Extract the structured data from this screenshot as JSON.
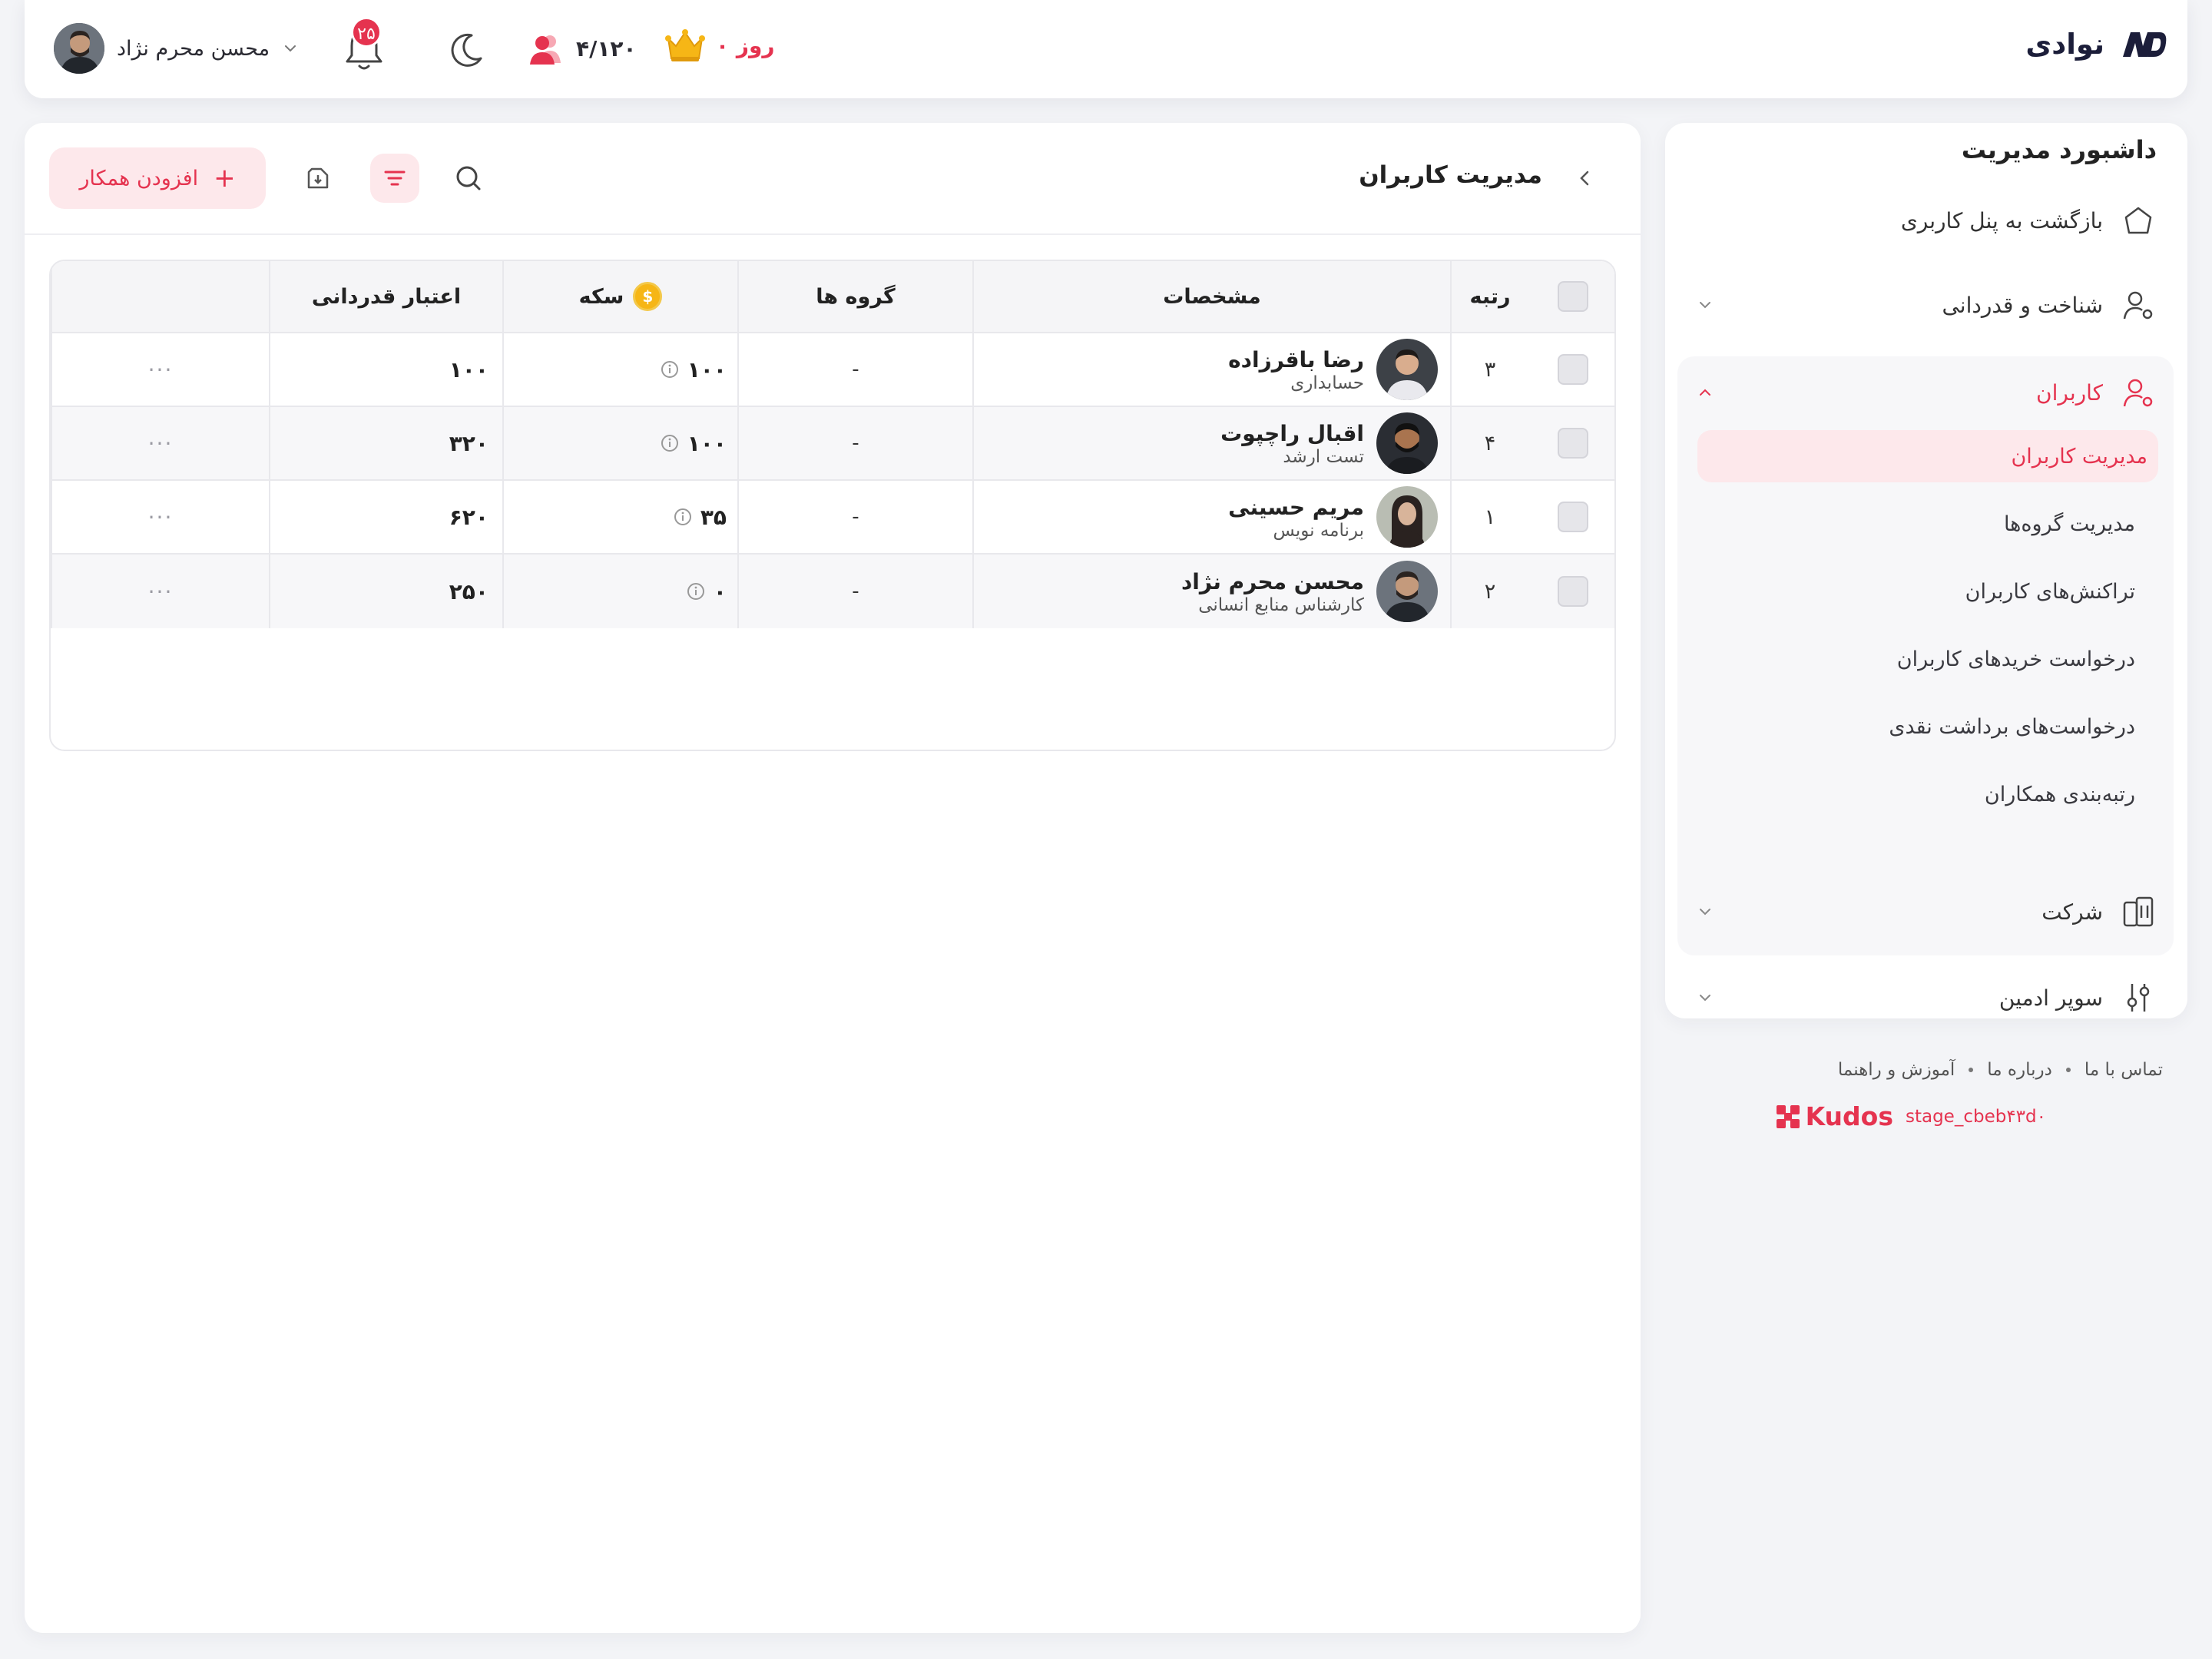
{
  "header": {
    "brand_name": "نوادی",
    "user_name": "محسن محرم نژاد",
    "notification_count": "۲۵",
    "users_count": "۴/۱۲۰",
    "days_left": "۰ روز"
  },
  "sidebar": {
    "title": "داشبورد مدیریت",
    "back_label": "بازگشت به پنل کاربری",
    "recognition_label": "شناخت و قدردانی",
    "users_label": "کاربران",
    "sub_items": [
      {
        "label": "مدیریت کاربران",
        "active": true
      },
      {
        "label": "مدیریت گروه‌ها",
        "active": false
      },
      {
        "label": "تراکنش‌های کاربران",
        "active": false
      },
      {
        "label": "درخواست خریدهای کاربران",
        "active": false
      },
      {
        "label": "درخواست‌های برداشت نقدی",
        "active": false
      },
      {
        "label": "رتبه‌بندی همکاران",
        "active": false
      }
    ],
    "company_label": "شرکت",
    "super_admin_label": "سوپر ادمین"
  },
  "footer": {
    "links": [
      "تماس با ما",
      "درباره ما",
      "آموزش و راهنما"
    ],
    "stage": "stage_cbeb۴۳d۰",
    "brand": "Kudos"
  },
  "main": {
    "title": "مدیریت کاربران",
    "add_button": "افزودن همکار"
  },
  "table": {
    "headers": {
      "rank": "رتبه",
      "details": "مشخصات",
      "groups": "گروه ها",
      "coins": "سکه",
      "credit": "اعتبار قدردانی"
    },
    "rows": [
      {
        "rank": "۳",
        "name": "رضا باقرزاده",
        "role": "حسابداری",
        "groups": "-",
        "coins": "۱۰۰",
        "credit": "۱۰۰"
      },
      {
        "rank": "۴",
        "name": "اقبال راچپوت",
        "role": "تست ارشد",
        "groups": "-",
        "coins": "۱۰۰",
        "credit": "۳۲۰"
      },
      {
        "rank": "۱",
        "name": "مریم حسینی",
        "role": "برنامه نویس",
        "groups": "-",
        "coins": "۳۵",
        "credit": "۶۲۰"
      },
      {
        "rank": "۲",
        "name": "محسن محرم نژاد",
        "role": "کارشناس منابع انسانی",
        "groups": "-",
        "coins": "۰",
        "credit": "۲۵۰"
      }
    ],
    "more_label": "···"
  },
  "colors": {
    "accent": "#e5334f",
    "accent_soft": "#fde8eb",
    "background": "#f3f4f7"
  }
}
